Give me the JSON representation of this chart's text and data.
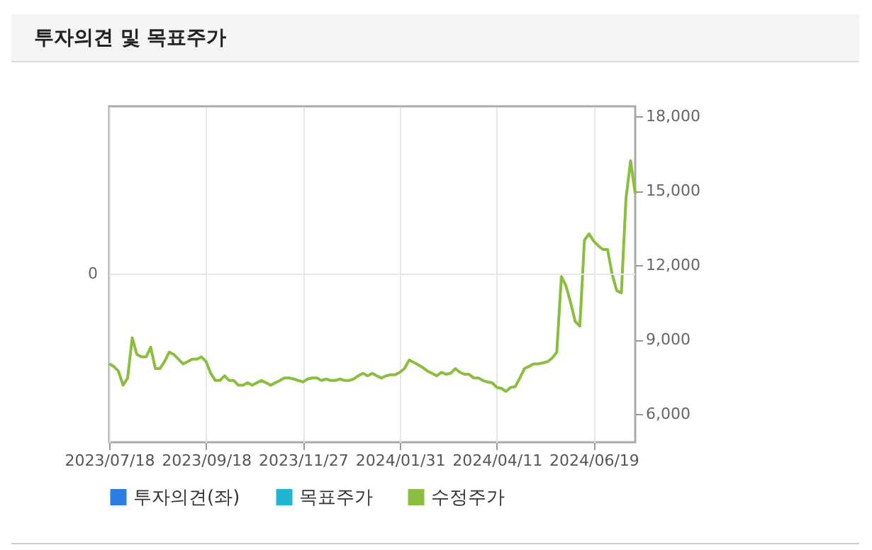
{
  "chart_data": {
    "type": "line",
    "title": "투자의견 및 목표주가",
    "categories": [
      "2023/07/18",
      null,
      null,
      null,
      null,
      null,
      null,
      null,
      null,
      null,
      null,
      null,
      null,
      null,
      null,
      null,
      null,
      null,
      null,
      null,
      null,
      "2023/09/18",
      null,
      null,
      null,
      null,
      null,
      null,
      null,
      null,
      null,
      null,
      null,
      null,
      null,
      null,
      null,
      null,
      null,
      null,
      null,
      null,
      "2023/11/27",
      null,
      null,
      null,
      null,
      null,
      null,
      null,
      null,
      null,
      null,
      null,
      null,
      null,
      null,
      null,
      null,
      null,
      null,
      null,
      null,
      "2024/01/31",
      null,
      null,
      null,
      null,
      null,
      null,
      null,
      null,
      null,
      null,
      null,
      null,
      null,
      null,
      null,
      null,
      null,
      null,
      null,
      null,
      "2024/04/11",
      null,
      null,
      null,
      null,
      null,
      null,
      null,
      null,
      null,
      null,
      null,
      null,
      null,
      null,
      null,
      null,
      null,
      null,
      null,
      null,
      "2024/06/19",
      null,
      null,
      null,
      null,
      null,
      null,
      null,
      null,
      null
    ],
    "series": [
      {
        "name": "투자의견(좌)",
        "type": "bar",
        "axis": "y",
        "color": "#2a7de1",
        "values": [
          null,
          null,
          null,
          null,
          null,
          null,
          null,
          null,
          null,
          null,
          null,
          null,
          null,
          null,
          null,
          null,
          null,
          null,
          null,
          null,
          null,
          null,
          null,
          null,
          null,
          null,
          null,
          null,
          null,
          null,
          null,
          null,
          null,
          null,
          null,
          null,
          null,
          null,
          null,
          null,
          null,
          null,
          null,
          null,
          null,
          null,
          null,
          null,
          null,
          null,
          null,
          null,
          null,
          null,
          null,
          null,
          null,
          null,
          null,
          null,
          null,
          null,
          null,
          null,
          null,
          null,
          null,
          null,
          null,
          null,
          null,
          null,
          null,
          null,
          null,
          null,
          null,
          null,
          null,
          null,
          null,
          null,
          null,
          null,
          null,
          null,
          null,
          null,
          null,
          null,
          null,
          null,
          null,
          null,
          null,
          null,
          null,
          null,
          null,
          null,
          null,
          null,
          null,
          null,
          null,
          null,
          null,
          null,
          null,
          null,
          null,
          null,
          null,
          null,
          null
        ]
      },
      {
        "name": "목표주가",
        "axis": "y2",
        "color": "#1fb5d3",
        "values": [
          null,
          null,
          null,
          null,
          null,
          null,
          null,
          null,
          null,
          null,
          null,
          null,
          null,
          null,
          null,
          null,
          null,
          null,
          null,
          null,
          null,
          null,
          null,
          null,
          null,
          null,
          null,
          null,
          null,
          null,
          null,
          null,
          null,
          null,
          null,
          null,
          null,
          null,
          null,
          null,
          null,
          null,
          null,
          null,
          null,
          null,
          null,
          null,
          null,
          null,
          null,
          null,
          null,
          null,
          null,
          null,
          null,
          null,
          null,
          null,
          null,
          null,
          null,
          null,
          null,
          null,
          null,
          null,
          null,
          null,
          null,
          null,
          null,
          null,
          null,
          null,
          null,
          null,
          null,
          null,
          null,
          null,
          null,
          null,
          null,
          null,
          null,
          null,
          null,
          null,
          null,
          null,
          null,
          null,
          null,
          null,
          null,
          null,
          null,
          null,
          null,
          null,
          null,
          null,
          null,
          null,
          null,
          null,
          null,
          null,
          null,
          null,
          null,
          null,
          null
        ]
      },
      {
        "name": "수정주가",
        "axis": "y2",
        "color": "#8bbd3f",
        "values": [
          8020,
          7920,
          7730,
          7160,
          7450,
          9070,
          8400,
          8300,
          8300,
          8690,
          7830,
          7830,
          8110,
          8490,
          8400,
          8210,
          8020,
          8110,
          8210,
          8210,
          8300,
          8110,
          7640,
          7350,
          7350,
          7540,
          7350,
          7350,
          7160,
          7160,
          7260,
          7160,
          7260,
          7350,
          7260,
          7160,
          7260,
          7350,
          7450,
          7450,
          7410,
          7350,
          7290,
          7410,
          7450,
          7450,
          7350,
          7410,
          7350,
          7350,
          7410,
          7350,
          7350,
          7410,
          7540,
          7640,
          7540,
          7640,
          7540,
          7450,
          7540,
          7580,
          7580,
          7680,
          7830,
          8170,
          8080,
          7980,
          7870,
          7730,
          7640,
          7540,
          7680,
          7600,
          7640,
          7830,
          7680,
          7600,
          7600,
          7450,
          7450,
          7350,
          7290,
          7260,
          7070,
          7030,
          6910,
          7070,
          7100,
          7450,
          7830,
          7920,
          8020,
          8020,
          8060,
          8110,
          8250,
          8490,
          11540,
          11160,
          10490,
          9730,
          9540,
          13010,
          13260,
          12970,
          12780,
          12630,
          12630,
          11640,
          10970,
          10880,
          14690,
          16210,
          14880
        ]
      }
    ],
    "annotations": [
      "0"
    ],
    "y2lim": [
      4860,
      18400
    ],
    "y2ticks": [
      {
        "value": 6000,
        "label": "6,000"
      },
      {
        "value": 9000,
        "label": "9,000"
      },
      {
        "value": 12000,
        "label": "12,000"
      },
      {
        "value": 15000,
        "label": "15,000"
      },
      {
        "value": 18000,
        "label": "18,000"
      }
    ],
    "grid": true,
    "legend": "bottom"
  }
}
